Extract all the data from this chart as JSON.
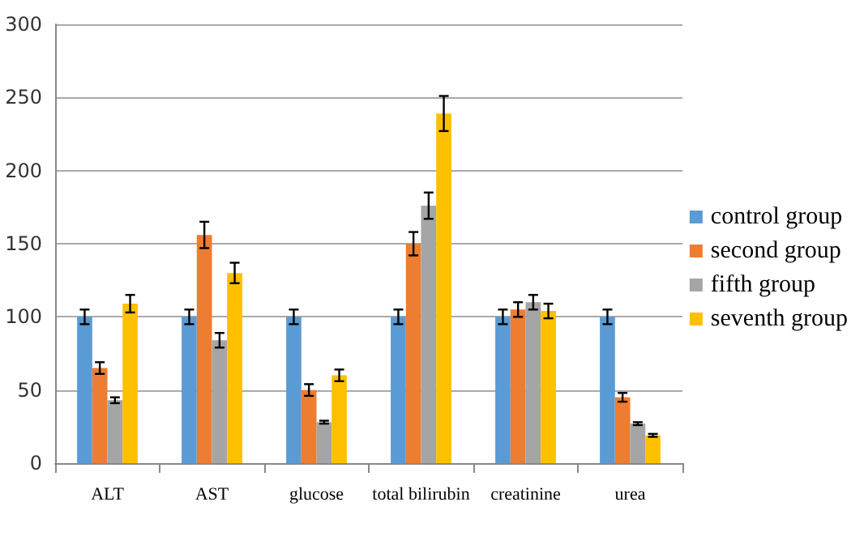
{
  "chart_data": {
    "type": "bar",
    "categories": [
      "ALT",
      "AST",
      "glucose",
      "total bilirubin",
      "creatinine",
      "urea"
    ],
    "series": [
      {
        "name": "control group",
        "color": "#5b9bd5",
        "values": [
          100,
          100,
          100,
          100,
          100,
          100
        ],
        "errors": [
          5,
          5,
          5,
          5,
          5,
          5
        ]
      },
      {
        "name": "second group",
        "color": "#ed7d31",
        "values": [
          65,
          156,
          50,
          150,
          105,
          45
        ],
        "errors": [
          4,
          9,
          4,
          8,
          5,
          3
        ]
      },
      {
        "name": "fifth group",
        "color": "#a5a5a5",
        "values": [
          43,
          84,
          28,
          176,
          110,
          27
        ],
        "errors": [
          2,
          5,
          1,
          9,
          5,
          1
        ]
      },
      {
        "name": "seventh group",
        "color": "#ffc000",
        "values": [
          109,
          130,
          60,
          239,
          104,
          19
        ],
        "errors": [
          6,
          7,
          4,
          12,
          5,
          1
        ]
      }
    ],
    "ylim": [
      0,
      300
    ],
    "yticks": [
      0,
      50,
      100,
      150,
      200,
      250,
      300
    ],
    "grid": "y",
    "legend": "right"
  }
}
